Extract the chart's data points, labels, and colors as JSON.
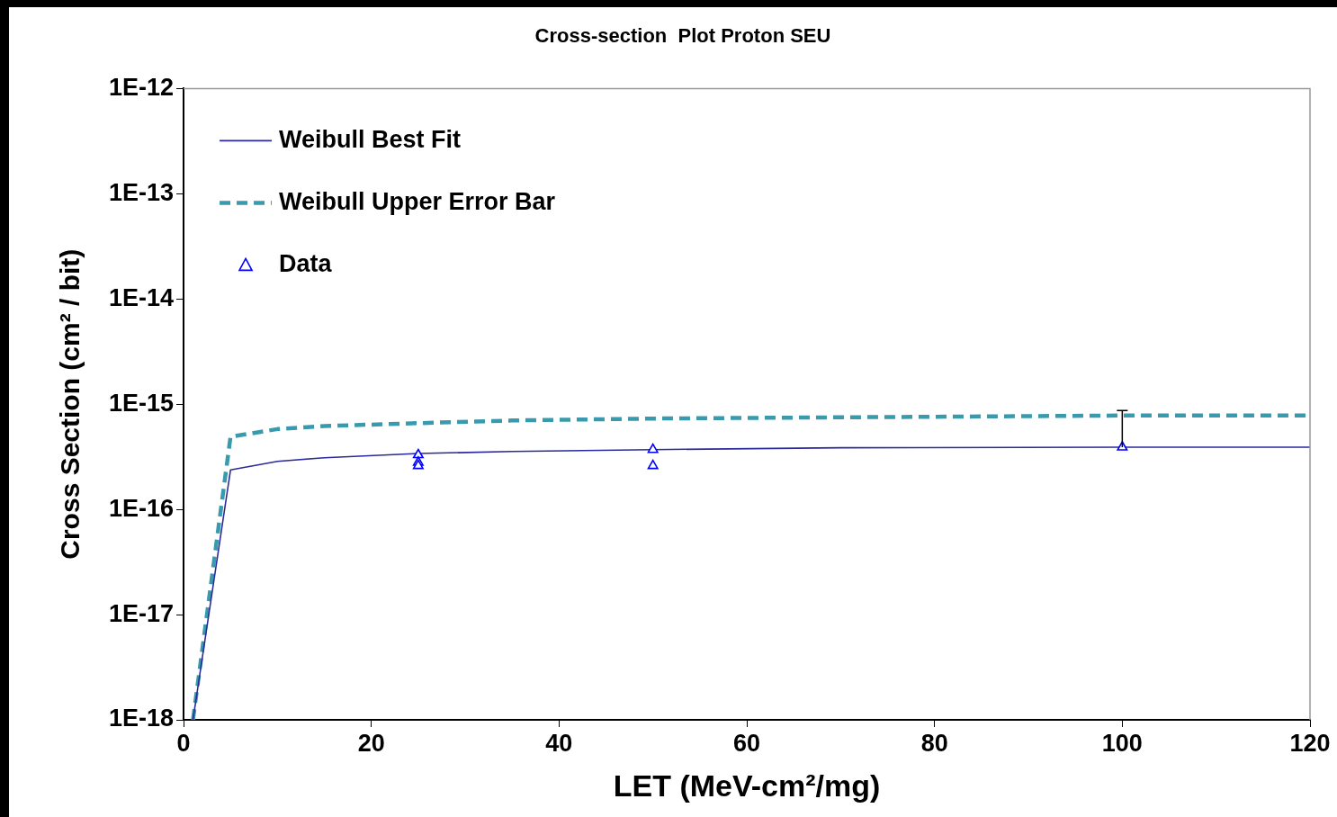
{
  "chart_data": {
    "type": "line",
    "title": "Cross-section  Plot Proton SEU",
    "xlabel": "LET (MeV-cm²/mg)",
    "ylabel": "Cross Section (cm² / bit)",
    "xlim": [
      0,
      120
    ],
    "xticks": [
      0,
      20,
      40,
      60,
      80,
      100,
      120
    ],
    "ylim": [
      1e-18,
      1e-12
    ],
    "yticks": [
      {
        "value": 1e-18,
        "label": "1E-18"
      },
      {
        "value": 1e-17,
        "label": "1E-17"
      },
      {
        "value": 1e-16,
        "label": "1E-16"
      },
      {
        "value": 1e-15,
        "label": "1E-15"
      },
      {
        "value": 1e-14,
        "label": "1E-14"
      },
      {
        "value": 1e-13,
        "label": "1E-13"
      },
      {
        "value": 1e-12,
        "label": "1E-12"
      }
    ],
    "log": "y",
    "grid": false,
    "legend": "top left",
    "series": [
      {
        "name": "Weibull Best Fit",
        "line_style": "solid",
        "marker": "none",
        "color": "#2a2a9a",
        "x": [
          1,
          5,
          10,
          15,
          25,
          35,
          50,
          70,
          100,
          120
        ],
        "values": [
          1e-18,
          2.37e-16,
          2.86e-16,
          3.1e-16,
          3.4e-16,
          3.55e-16,
          3.7e-16,
          3.85e-16,
          3.9e-16,
          3.9e-16
        ]
      },
      {
        "name": "Weibull Upper Error Bar",
        "line_style": "dashed",
        "marker": "none",
        "color": "#3a9aad",
        "x": [
          1,
          5,
          10,
          15,
          25,
          35,
          50,
          70,
          100,
          120
        ],
        "values": [
          1e-18,
          4.9e-16,
          5.8e-16,
          6.2e-16,
          6.6e-16,
          7e-16,
          7.3e-16,
          7.5e-16,
          7.8e-16,
          7.8e-16
        ]
      },
      {
        "name": "Data",
        "type": "scatter",
        "marker": "triangle",
        "color": "#0000ff",
        "x": [
          25,
          25,
          25,
          50,
          50,
          100
        ],
        "values": [
          3.3e-16,
          2.8e-16,
          2.6e-16,
          3.7e-16,
          2.6e-16,
          3.9e-16
        ],
        "errors": [
          null,
          null,
          null,
          null,
          null,
          [
            3.9e-16,
            8.7e-16
          ]
        ]
      }
    ]
  }
}
